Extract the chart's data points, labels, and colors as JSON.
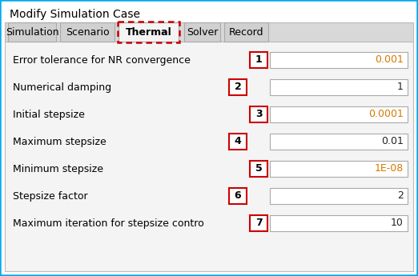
{
  "title": "Modify Simulation Case",
  "tabs": [
    "Simulation",
    "Scenario",
    "Thermal",
    "Solver",
    "Record"
  ],
  "active_tab": "Thermal",
  "bg_color": "#ffffff",
  "outer_border_color": "#00aaee",
  "tab_area_bg": "#e8e8e8",
  "active_tab_bg": "#f4f4f4",
  "content_bg": "#f4f4f4",
  "params": [
    {
      "label": "Error tolerance for NR convergence",
      "num": "1",
      "value": "0.001",
      "value_color": "#d47800",
      "nb_right": true
    },
    {
      "label": "Numerical damping",
      "num": "2",
      "value": "1",
      "value_color": "#222222",
      "nb_right": false
    },
    {
      "label": "Initial stepsize",
      "num": "3",
      "value": "0.0001",
      "value_color": "#d47800",
      "nb_right": true
    },
    {
      "label": "Maximum stepsize",
      "num": "4",
      "value": "0.01",
      "value_color": "#222222",
      "nb_right": false
    },
    {
      "label": "Minimum stepsize",
      "num": "5",
      "value": "1E-08",
      "value_color": "#d47800",
      "nb_right": true
    },
    {
      "label": "Stepsize factor",
      "num": "6",
      "value": "2",
      "value_color": "#222222",
      "nb_right": false
    },
    {
      "label": "Maximum iteration for stepsize contro",
      "num": "7",
      "value": "10",
      "value_color": "#222222",
      "nb_right": true
    }
  ],
  "num_box_color": "#cc0000",
  "num_box_fill": "#ffffff",
  "value_box_fill": "#ffffff",
  "value_box_border": "#aaaaaa",
  "label_color": "#000000",
  "num_color": "#000000",
  "title_fontsize": 10,
  "tab_fontsize": 9,
  "label_fontsize": 9,
  "value_fontsize": 9,
  "num_fontsize": 9,
  "tab_x": [
    10,
    75,
    148,
    230,
    280
  ],
  "tab_w": [
    60,
    68,
    75,
    45,
    55
  ]
}
